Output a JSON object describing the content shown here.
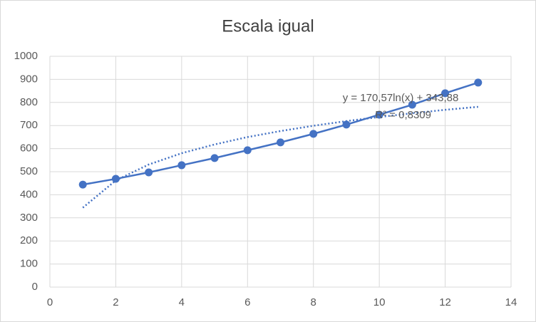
{
  "chart_data": {
    "type": "scatter-line",
    "title": "Escala igual",
    "x": [
      1,
      2,
      3,
      4,
      5,
      6,
      7,
      8,
      9,
      10,
      11,
      12,
      13
    ],
    "series": [
      {
        "color": "#4472c4",
        "values": [
          444,
          469,
          497,
          528,
          559,
          593,
          627,
          664,
          704,
          747,
          790,
          840,
          886
        ]
      }
    ],
    "trendline": {
      "equation": "y = 170,57ln(x) + 343,88",
      "r_squared": "R² = 0,8309",
      "color": "#4472c4",
      "values": [
        344,
        462,
        531,
        580,
        618,
        650,
        676,
        699,
        719,
        737,
        753,
        768,
        781
      ]
    },
    "xlim": [
      0,
      14
    ],
    "xticks": [
      0,
      2,
      4,
      6,
      8,
      10,
      12,
      14
    ],
    "ylim": [
      0,
      1000
    ],
    "yticks": [
      0,
      100,
      200,
      300,
      400,
      500,
      600,
      700,
      800,
      900,
      1000
    ],
    "grid": true
  }
}
